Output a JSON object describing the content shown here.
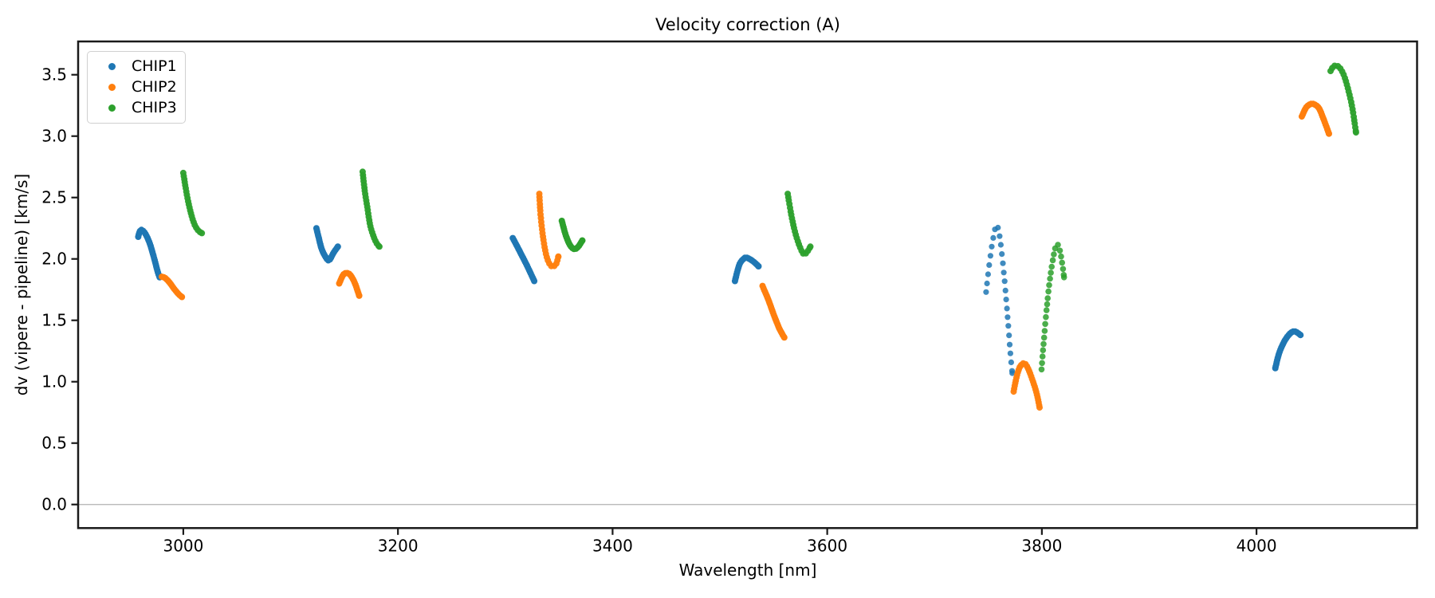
{
  "title": "Velocity correction (A)",
  "xlabel": "Wavelength [nm]",
  "ylabel": "dv (vipere - pipeline) [km/s]",
  "legend": {
    "items": [
      {
        "label": "CHIP1",
        "color": "#1f77b4"
      },
      {
        "label": "CHIP2",
        "color": "#ff7f0e"
      },
      {
        "label": "CHIP3",
        "color": "#2ca02c"
      }
    ]
  },
  "axes": {
    "x_tick_values": [
      3000,
      3200,
      3400,
      3600,
      3800,
      4000
    ],
    "x_tick_labels": [
      "3000",
      "3200",
      "3400",
      "3600",
      "3800",
      "4000"
    ],
    "y_tick_values": [
      0.0,
      0.5,
      1.0,
      1.5,
      2.0,
      2.5,
      3.0,
      3.5
    ],
    "y_tick_labels": [
      "0.0",
      "0.5",
      "1.0",
      "1.5",
      "2.0",
      "2.5",
      "3.0",
      "3.5"
    ],
    "x_range": [
      2902,
      4149.6
    ],
    "y_range": [
      -0.192,
      3.771
    ],
    "zero_line_y": 0.0,
    "grid": false,
    "spine_color": "#1a1a1a",
    "zero_line_color": "#b0b0b0"
  },
  "chart_data": {
    "type": "scatter",
    "title": "Velocity correction (A)",
    "xlabel": "Wavelength [nm]",
    "ylabel": "dv (vipere - pipeline) [km/s]",
    "legend_position": "upper left",
    "xlim": [
      2902,
      4149.6
    ],
    "ylim": [
      -0.192,
      3.771
    ],
    "series": [
      {
        "name": "CHIP1",
        "color": "#1f77b4",
        "segments": [
          {
            "dot_spacing_px": 2.4,
            "dot_radius_px": 4,
            "opacity": 1,
            "points": [
              [
                2958,
                2.18
              ],
              [
                2959.5,
                2.225
              ],
              [
                2961.5,
                2.235
              ],
              [
                2965,
                2.2
              ],
              [
                2969,
                2.12
              ],
              [
                2973,
                2.0
              ],
              [
                2976,
                1.9
              ],
              [
                2978,
                1.85
              ]
            ]
          },
          {
            "dot_spacing_px": 2.4,
            "dot_radius_px": 4,
            "opacity": 1,
            "points": [
              [
                3124,
                2.25
              ],
              [
                3126,
                2.18
              ],
              [
                3129,
                2.08
              ],
              [
                3133,
                2.01
              ],
              [
                3136,
                1.99
              ],
              [
                3140,
                2.05
              ],
              [
                3144,
                2.1
              ]
            ]
          },
          {
            "dot_spacing_px": 2.4,
            "dot_radius_px": 4,
            "opacity": 1,
            "points": [
              [
                3307,
                2.17
              ],
              [
                3313,
                2.07
              ],
              [
                3320,
                1.95
              ],
              [
                3327,
                1.82
              ]
            ]
          },
          {
            "dot_spacing_px": 2.4,
            "dot_radius_px": 4,
            "opacity": 1,
            "points": [
              [
                3514,
                1.82
              ],
              [
                3518,
                1.95
              ],
              [
                3522,
                2.0
              ],
              [
                3525,
                2.01
              ],
              [
                3531,
                1.98
              ],
              [
                3536,
                1.94
              ]
            ]
          },
          {
            "dot_spacing_px": 10.8,
            "dot_radius_px": 3.6,
            "opacity": 0.85,
            "points": [
              [
                3748,
                1.73
              ],
              [
                3750.5,
                1.92
              ],
              [
                3753.5,
                2.11
              ],
              [
                3756,
                2.23
              ],
              [
                3757.6,
                2.28
              ],
              [
                3760,
                2.22
              ],
              [
                3762.5,
                2.06
              ],
              [
                3765.5,
                1.8
              ],
              [
                3768.5,
                1.48
              ],
              [
                3770.5,
                1.25
              ],
              [
                3772.4,
                1.07
              ]
            ]
          },
          {
            "dot_spacing_px": 2.4,
            "dot_radius_px": 4,
            "opacity": 1,
            "points": [
              [
                4017.5,
                1.11
              ],
              [
                4021,
                1.23
              ],
              [
                4026,
                1.33
              ],
              [
                4031,
                1.39
              ],
              [
                4034.8,
                1.41
              ],
              [
                4038,
                1.4
              ],
              [
                4041,
                1.38
              ]
            ]
          }
        ]
      },
      {
        "name": "CHIP2",
        "color": "#ff7f0e",
        "segments": [
          {
            "dot_spacing_px": 2.4,
            "dot_radius_px": 4,
            "opacity": 1,
            "points": [
              [
                2980,
                1.855
              ],
              [
                2983,
                1.845
              ],
              [
                2987,
                1.81
              ],
              [
                2992,
                1.75
              ],
              [
                2996,
                1.71
              ],
              [
                2998.7,
                1.69
              ]
            ]
          },
          {
            "dot_spacing_px": 2.4,
            "dot_radius_px": 4,
            "opacity": 1,
            "points": [
              [
                3145.3,
                1.8
              ],
              [
                3149,
                1.87
              ],
              [
                3152.5,
                1.885
              ],
              [
                3156,
                1.865
              ],
              [
                3160,
                1.8
              ],
              [
                3163.9,
                1.7
              ]
            ]
          },
          {
            "dot_spacing_px": 4.0,
            "dot_radius_px": 4,
            "opacity": 0.95,
            "points": [
              [
                3331.7,
                2.53
              ],
              [
                3333,
                2.35
              ],
              [
                3335.5,
                2.16
              ],
              [
                3338.5,
                2.02
              ],
              [
                3342,
                1.95
              ],
              [
                3344.8,
                1.94
              ],
              [
                3347.5,
                1.96
              ],
              [
                3349.5,
                2.02
              ]
            ]
          },
          {
            "dot_spacing_px": 2.4,
            "dot_radius_px": 4,
            "opacity": 1,
            "points": [
              [
                3539.7,
                1.78
              ],
              [
                3545,
                1.67
              ],
              [
                3550,
                1.55
              ],
              [
                3555,
                1.44
              ],
              [
                3558,
                1.39
              ],
              [
                3560,
                1.36
              ]
            ]
          },
          {
            "dot_spacing_px": 3.2,
            "dot_radius_px": 4,
            "opacity": 0.95,
            "points": [
              [
                3773.7,
                0.92
              ],
              [
                3776.5,
                1.04
              ],
              [
                3779.5,
                1.12
              ],
              [
                3783.6,
                1.15
              ],
              [
                3787,
                1.11
              ],
              [
                3791,
                1.02
              ],
              [
                3795,
                0.91
              ],
              [
                3797.9,
                0.79
              ]
            ]
          },
          {
            "dot_spacing_px": 2.4,
            "dot_radius_px": 4,
            "opacity": 1,
            "points": [
              [
                4042.2,
                3.16
              ],
              [
                4046,
                3.23
              ],
              [
                4050,
                3.26
              ],
              [
                4053.4,
                3.26
              ],
              [
                4058,
                3.23
              ],
              [
                4062,
                3.15
              ],
              [
                4067.5,
                3.02
              ]
            ]
          }
        ]
      },
      {
        "name": "CHIP3",
        "color": "#2ca02c",
        "segments": [
          {
            "dot_spacing_px": 3.6,
            "dot_radius_px": 4,
            "opacity": 0.95,
            "points": [
              [
                3000,
                2.7
              ],
              [
                3002,
                2.59
              ],
              [
                3004.5,
                2.47
              ],
              [
                3007.5,
                2.36
              ],
              [
                3010.5,
                2.28
              ],
              [
                3014,
                2.23
              ],
              [
                3017.3,
                2.21
              ]
            ]
          },
          {
            "dot_spacing_px": 3.6,
            "dot_radius_px": 4,
            "opacity": 0.95,
            "points": [
              [
                3167.1,
                2.71
              ],
              [
                3169,
                2.56
              ],
              [
                3171.5,
                2.42
              ],
              [
                3174,
                2.28
              ],
              [
                3177,
                2.19
              ],
              [
                3180,
                2.13
              ],
              [
                3182.7,
                2.1
              ]
            ]
          },
          {
            "dot_spacing_px": 2.4,
            "dot_radius_px": 4,
            "opacity": 1,
            "points": [
              [
                3352.7,
                2.31
              ],
              [
                3356.5,
                2.19
              ],
              [
                3360.5,
                2.11
              ],
              [
                3364.4,
                2.08
              ],
              [
                3368,
                2.1
              ],
              [
                3371.8,
                2.15
              ]
            ]
          },
          {
            "dot_spacing_px": 4.0,
            "dot_radius_px": 4,
            "opacity": 0.95,
            "points": [
              [
                3563.2,
                2.53
              ],
              [
                3566.5,
                2.36
              ],
              [
                3570,
                2.22
              ],
              [
                3574,
                2.11
              ],
              [
                3578,
                2.04
              ],
              [
                3581.5,
                2.06
              ],
              [
                3584.3,
                2.1
              ]
            ]
          },
          {
            "dot_spacing_px": 7.5,
            "dot_radius_px": 3.8,
            "opacity": 0.85,
            "points": [
              [
                3799.7,
                1.1
              ],
              [
                3801.5,
                1.3
              ],
              [
                3804,
                1.55
              ],
              [
                3807,
                1.8
              ],
              [
                3810,
                1.98
              ],
              [
                3812.5,
                2.09
              ],
              [
                3814.5,
                2.12
              ],
              [
                3817,
                2.06
              ],
              [
                3819,
                1.96
              ],
              [
                3820.7,
                1.85
              ]
            ]
          },
          {
            "dot_spacing_px": 4.2,
            "dot_radius_px": 4,
            "opacity": 0.95,
            "points": [
              [
                4069,
                3.53
              ],
              [
                4072,
                3.57
              ],
              [
                4075.7,
                3.57
              ],
              [
                4079,
                3.54
              ],
              [
                4082.5,
                3.47
              ],
              [
                4086,
                3.36
              ],
              [
                4089.5,
                3.22
              ],
              [
                4092.7,
                3.03
              ]
            ]
          }
        ]
      }
    ]
  }
}
